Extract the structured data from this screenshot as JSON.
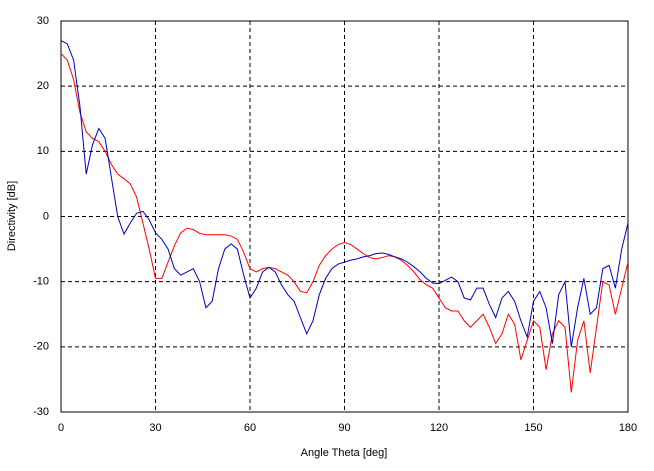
{
  "chart_data": {
    "type": "line",
    "xlabel": "Angle Theta [deg]",
    "ylabel": "Directivity [dB]",
    "x": [
      0,
      2,
      4,
      6,
      8,
      10,
      12,
      14,
      16,
      18,
      20,
      22,
      24,
      26,
      28,
      30,
      32,
      34,
      36,
      38,
      40,
      42,
      44,
      46,
      48,
      50,
      52,
      54,
      56,
      58,
      60,
      62,
      64,
      66,
      68,
      70,
      72,
      74,
      76,
      78,
      80,
      82,
      84,
      86,
      88,
      90,
      92,
      94,
      96,
      98,
      100,
      102,
      104,
      106,
      108,
      110,
      112,
      114,
      116,
      118,
      120,
      122,
      124,
      126,
      128,
      130,
      132,
      134,
      136,
      138,
      140,
      142,
      144,
      146,
      148,
      150,
      152,
      154,
      156,
      158,
      160,
      162,
      164,
      166,
      168,
      170,
      172,
      174,
      176,
      178,
      180
    ],
    "series": [
      {
        "color": "#ff0000",
        "values": [
          25,
          24,
          21,
          16,
          13,
          12,
          11.5,
          10,
          8,
          6.5,
          5.8,
          5,
          3,
          -1,
          -5,
          -9.5,
          -9.5,
          -7,
          -4.5,
          -2.5,
          -1.8,
          -2,
          -2.6,
          -2.8,
          -2.8,
          -2.8,
          -2.8,
          -3,
          -3.5,
          -5.5,
          -8,
          -8.5,
          -8,
          -7.8,
          -8,
          -8.5,
          -9,
          -10,
          -11.5,
          -11.7,
          -10,
          -7.5,
          -6,
          -5,
          -4.3,
          -4,
          -4.3,
          -5,
          -5.7,
          -6.3,
          -6.5,
          -6.3,
          -6,
          -6.2,
          -6.7,
          -7.5,
          -8.5,
          -9.7,
          -10.5,
          -11,
          -12.5,
          -14,
          -14.5,
          -14.5,
          -16,
          -17,
          -16,
          -15,
          -17,
          -19.5,
          -18,
          -15,
          -16.5,
          -22,
          -19,
          -16,
          -17,
          -23.5,
          -18,
          -16,
          -17,
          -27,
          -19,
          -16,
          -24,
          -17,
          -10,
          -10.5,
          -15,
          -11,
          -7
        ]
      },
      {
        "color": "#0000c0",
        "values": [
          27,
          26.5,
          24,
          17,
          6.5,
          11,
          13.5,
          12,
          6,
          0,
          -2.7,
          -1,
          0.5,
          0.8,
          -0.5,
          -2.5,
          -3.5,
          -5,
          -8,
          -9,
          -8.5,
          -8,
          -10,
          -14,
          -13,
          -8,
          -5,
          -4.2,
          -5,
          -9,
          -12.5,
          -11,
          -8.5,
          -7.8,
          -8.5,
          -10.5,
          -12,
          -13,
          -15.5,
          -18,
          -16,
          -12,
          -9.5,
          -8,
          -7.3,
          -7,
          -6.7,
          -6.5,
          -6.2,
          -6,
          -5.7,
          -5.6,
          -5.8,
          -6.2,
          -6.5,
          -7,
          -7.7,
          -8.5,
          -9.5,
          -10.2,
          -10.3,
          -9.8,
          -9.3,
          -10,
          -12.5,
          -12.8,
          -11,
          -11,
          -13.5,
          -15.5,
          -12.5,
          -11.5,
          -13,
          -16,
          -18.5,
          -13,
          -11.5,
          -14,
          -19.5,
          -12,
          -10,
          -20,
          -14,
          -9.5,
          -15,
          -14,
          -8,
          -7.5,
          -11,
          -5,
          -1
        ]
      }
    ],
    "xlim": [
      0,
      180
    ],
    "xticks": [
      0,
      30,
      60,
      90,
      120,
      150,
      180
    ],
    "ylim": [
      -30,
      30
    ],
    "yticks": [
      -30,
      -20,
      -10,
      0,
      10,
      20,
      30
    ],
    "grid": true
  }
}
